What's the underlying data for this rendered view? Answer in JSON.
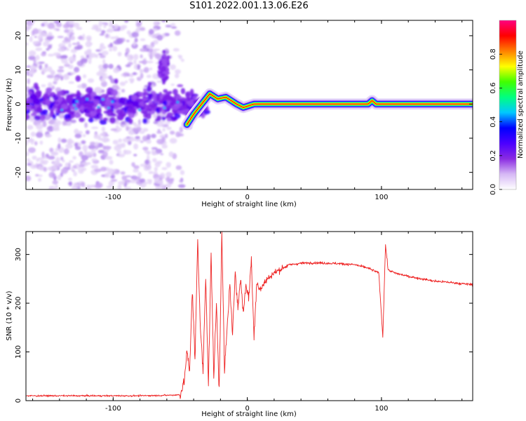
{
  "title": "S101.2022.001.13.06.E26",
  "chart_data": [
    {
      "type": "heatmap",
      "xlabel": "Height of straight line (km)",
      "ylabel": "Frequency (Hz)",
      "xlim": [
        -165,
        168
      ],
      "ylim": [
        -25,
        24.5
      ],
      "xticks": [
        -100,
        0,
        100
      ],
      "xtick_labels": [
        "-100",
        "0",
        "100"
      ],
      "yticks": [
        -20,
        -10,
        0,
        10,
        20
      ],
      "ytick_labels": [
        "-20",
        "-10",
        "0",
        "10",
        "20"
      ],
      "grid": false,
      "colorbar": {
        "label": "Normalized spectral amplitude",
        "range": [
          0,
          1
        ],
        "ticks": [
          0.0,
          0.2,
          0.4,
          0.6,
          0.8
        ],
        "tick_labels": [
          "0.0",
          "0.2",
          "0.4",
          "0.6",
          "0.8"
        ],
        "colormap": [
          "#ffffff",
          "#d6b8f5",
          "#8a2be2",
          "#4b00ff",
          "#0000ff",
          "#00c8ff",
          "#00ff80",
          "#40ff00",
          "#ffff00",
          "#ff8000",
          "#ff0000",
          "#ff0080"
        ]
      },
      "ridge": [
        {
          "x": -45,
          "y": -6
        },
        {
          "x": -40,
          "y": -3
        },
        {
          "x": -33,
          "y": 0.5
        },
        {
          "x": -28,
          "y": 3
        },
        {
          "x": -22,
          "y": 1.5
        },
        {
          "x": -16,
          "y": 2
        },
        {
          "x": -8,
          "y": 0
        },
        {
          "x": -3,
          "y": -1
        },
        {
          "x": 5,
          "y": 0
        },
        {
          "x": 90,
          "y": 0
        },
        {
          "x": 93,
          "y": 1
        },
        {
          "x": 96,
          "y": 0
        },
        {
          "x": 168,
          "y": 0
        }
      ]
    },
    {
      "type": "line",
      "xlabel": "Height of straight line (km)",
      "ylabel": "SNR (10 * v/v)",
      "xlim": [
        -165,
        168
      ],
      "ylim": [
        0,
        347
      ],
      "xticks": [
        -100,
        0,
        100
      ],
      "xtick_labels": [
        "-100",
        "0",
        "100"
      ],
      "yticks": [
        0,
        100,
        200,
        300
      ],
      "ytick_labels": [
        "0",
        "100",
        "200",
        "300"
      ],
      "grid": false,
      "color": "#ee2222",
      "series": [
        {
          "x": [
            -165,
            -140,
            -120,
            -100,
            -80,
            -60,
            -50,
            -47,
            -45,
            -43,
            -41,
            -39,
            -37,
            -35,
            -33,
            -31,
            -29,
            -27,
            -25,
            -23,
            -21,
            -19,
            -17,
            -15,
            -13,
            -11,
            -9,
            -7,
            -5,
            -3,
            -1,
            1,
            3,
            5,
            7,
            10,
            15,
            20,
            25,
            30,
            40,
            50,
            60,
            70,
            80,
            90,
            98,
            101,
            103,
            105,
            110,
            120,
            130,
            140,
            150,
            160,
            168
          ],
          "y": [
            10,
            10,
            10,
            10,
            10,
            11,
            12,
            40,
            100,
            60,
            230,
            80,
            330,
            150,
            60,
            260,
            30,
            300,
            50,
            200,
            20,
            345,
            60,
            150,
            240,
            130,
            270,
            190,
            250,
            180,
            240,
            210,
            290,
            130,
            240,
            230,
            250,
            262,
            270,
            278,
            282,
            283,
            282,
            281,
            279,
            272,
            262,
            130,
            320,
            268,
            262,
            255,
            250,
            245,
            243,
            240,
            238
          ]
        }
      ]
    }
  ]
}
